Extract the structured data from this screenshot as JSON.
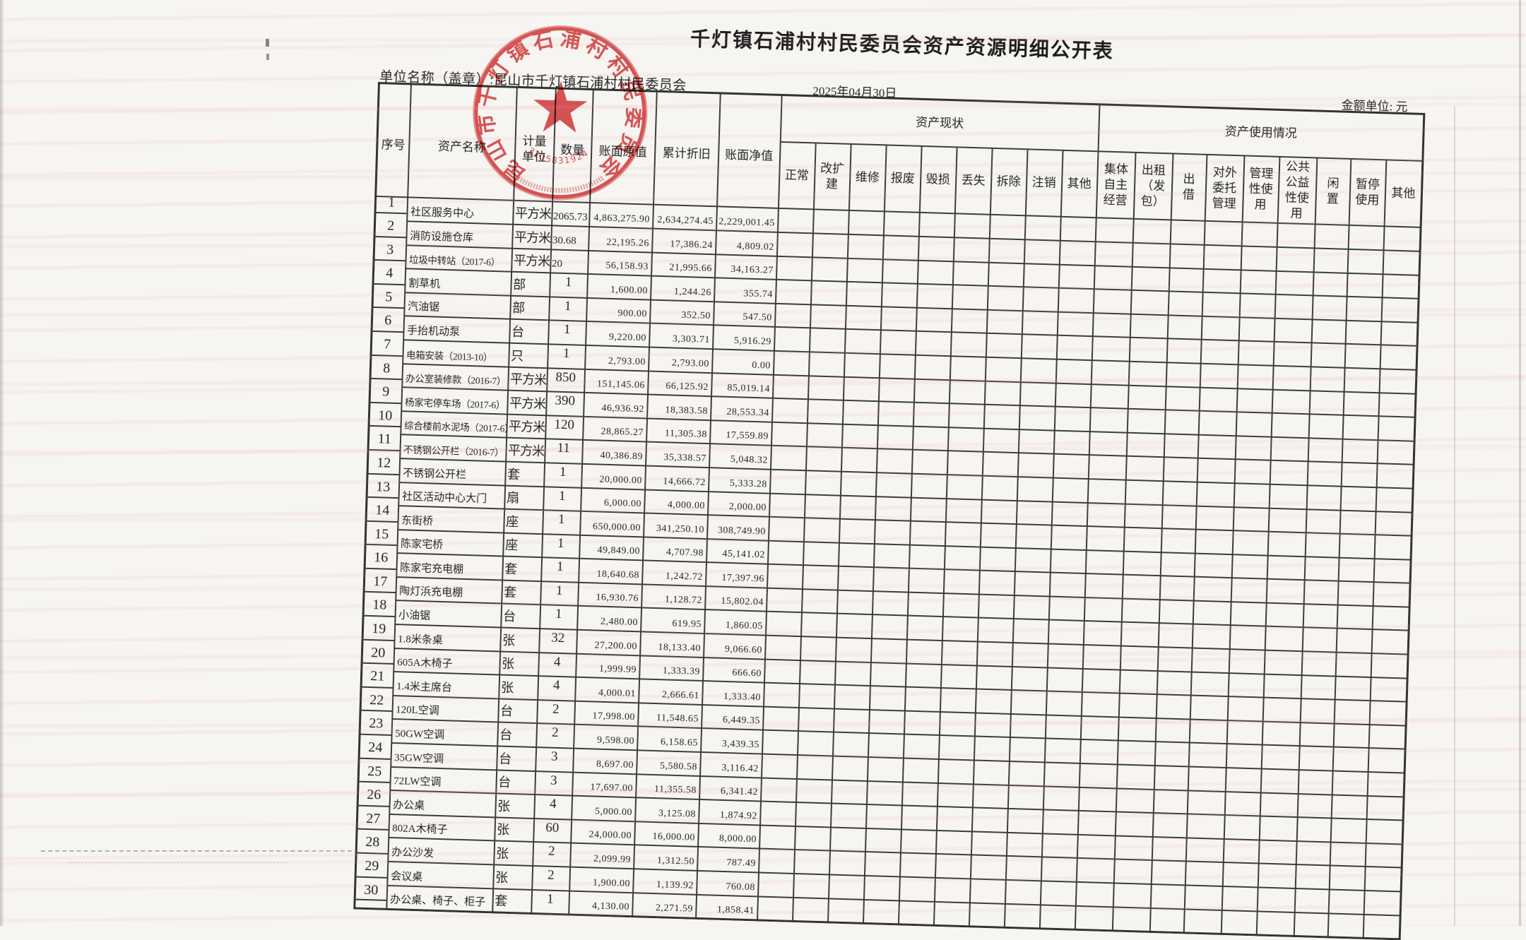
{
  "page": {
    "title": "千灯镇石浦村村民委员会资产资源明细公开表",
    "unit_label": "单位名称（盖章）:昆山市千灯镇石浦村村民委员会",
    "report_date": "2025年04月30日",
    "amount_unit": "金额单位: 元"
  },
  "stamp": {
    "ring_text": "昆山市千灯镇石浦村村民委员会",
    "code": "3205831924011",
    "color": "#cf3b3b"
  },
  "table": {
    "columns": [
      "序号",
      "资产名称",
      "计量单位",
      "数量",
      "账面原值",
      "累计折旧",
      "账面净值"
    ],
    "status_group": {
      "label": "资产现状",
      "columns": [
        "正常",
        "改扩建",
        "维修",
        "报废",
        "毁损",
        "丢失",
        "拆除",
        "注销",
        "其他"
      ]
    },
    "usage_group": {
      "label": "资产使用情况",
      "columns": [
        "集体自主经营",
        "出租（发包）",
        "出借",
        "对外委托管理",
        "管理性使用",
        "公共公益性使用",
        "闲置",
        "暂停使用",
        "其他"
      ]
    },
    "rows": [
      {
        "no": "1",
        "name": "社区服务中心",
        "unit": "平方米",
        "qty": "2065.73",
        "original": "4,863,275.90",
        "depreciation": "2,634,274.45",
        "net": "2,229,001.45"
      },
      {
        "no": "2",
        "name": "消防设施仓库",
        "unit": "平方米",
        "qty": "30.68",
        "original": "22,195.26",
        "depreciation": "17,386.24",
        "net": "4,809.02"
      },
      {
        "no": "3",
        "name": "垃圾中转站（2017-6）",
        "unit": "平方米",
        "qty": "20",
        "original": "56,158.93",
        "depreciation": "21,995.66",
        "net": "34,163.27"
      },
      {
        "no": "4",
        "name": "割草机",
        "unit": "部",
        "qty": "1",
        "original": "1,600.00",
        "depreciation": "1,244.26",
        "net": "355.74"
      },
      {
        "no": "5",
        "name": "汽油锯",
        "unit": "部",
        "qty": "1",
        "original": "900.00",
        "depreciation": "352.50",
        "net": "547.50"
      },
      {
        "no": "6",
        "name": "手抬机动泵",
        "unit": "台",
        "qty": "1",
        "original": "9,220.00",
        "depreciation": "3,303.71",
        "net": "5,916.29"
      },
      {
        "no": "7",
        "name": "电箱安装（2013-10）",
        "unit": "只",
        "qty": "1",
        "original": "2,793.00",
        "depreciation": "2,793.00",
        "net": "0.00"
      },
      {
        "no": "8",
        "name": "办公室装修款（2016-7）",
        "unit": "平方米",
        "qty": "850",
        "original": "151,145.06",
        "depreciation": "66,125.92",
        "net": "85,019.14"
      },
      {
        "no": "9",
        "name": "杨家宅停车场（2017-6）",
        "unit": "平方米",
        "qty": "390",
        "original": "46,936.92",
        "depreciation": "18,383.58",
        "net": "28,553.34"
      },
      {
        "no": "10",
        "name": "综合楼前水泥场（2017-6）",
        "unit": "平方米",
        "qty": "120",
        "original": "28,865.27",
        "depreciation": "11,305.38",
        "net": "17,559.89"
      },
      {
        "no": "11",
        "name": "不锈钢公开栏（2016-7）",
        "unit": "平方米",
        "qty": "11",
        "original": "40,386.89",
        "depreciation": "35,338.57",
        "net": "5,048.32"
      },
      {
        "no": "12",
        "name": "不锈钢公开栏",
        "unit": "套",
        "qty": "1",
        "original": "20,000.00",
        "depreciation": "14,666.72",
        "net": "5,333.28"
      },
      {
        "no": "13",
        "name": "社区活动中心大门",
        "unit": "扇",
        "qty": "1",
        "original": "6,000.00",
        "depreciation": "4,000.00",
        "net": "2,000.00"
      },
      {
        "no": "14",
        "name": "东街桥",
        "unit": "座",
        "qty": "1",
        "original": "650,000.00",
        "depreciation": "341,250.10",
        "net": "308,749.90"
      },
      {
        "no": "15",
        "name": "陈家宅桥",
        "unit": "座",
        "qty": "1",
        "original": "49,849.00",
        "depreciation": "4,707.98",
        "net": "45,141.02"
      },
      {
        "no": "16",
        "name": "陈家宅充电棚",
        "unit": "套",
        "qty": "1",
        "original": "18,640.68",
        "depreciation": "1,242.72",
        "net": "17,397.96"
      },
      {
        "no": "17",
        "name": "陶灯浜充电棚",
        "unit": "套",
        "qty": "1",
        "original": "16,930.76",
        "depreciation": "1,128.72",
        "net": "15,802.04"
      },
      {
        "no": "18",
        "name": "小油锯",
        "unit": "台",
        "qty": "1",
        "original": "2,480.00",
        "depreciation": "619.95",
        "net": "1,860.05"
      },
      {
        "no": "19",
        "name": "1.8米条桌",
        "unit": "张",
        "qty": "32",
        "original": "27,200.00",
        "depreciation": "18,133.40",
        "net": "9,066.60"
      },
      {
        "no": "20",
        "name": "605A木椅子",
        "unit": "张",
        "qty": "4",
        "original": "1,999.99",
        "depreciation": "1,333.39",
        "net": "666.60"
      },
      {
        "no": "21",
        "name": "1.4米主席台",
        "unit": "张",
        "qty": "4",
        "original": "4,000.01",
        "depreciation": "2,666.61",
        "net": "1,333.40"
      },
      {
        "no": "22",
        "name": "120L空调",
        "unit": "台",
        "qty": "2",
        "original": "17,998.00",
        "depreciation": "11,548.65",
        "net": "6,449.35"
      },
      {
        "no": "23",
        "name": "50GW空调",
        "unit": "台",
        "qty": "2",
        "original": "9,598.00",
        "depreciation": "6,158.65",
        "net": "3,439.35"
      },
      {
        "no": "24",
        "name": "35GW空调",
        "unit": "台",
        "qty": "3",
        "original": "8,697.00",
        "depreciation": "5,580.58",
        "net": "3,116.42"
      },
      {
        "no": "25",
        "name": "72LW空调",
        "unit": "台",
        "qty": "3",
        "original": "17,697.00",
        "depreciation": "11,355.58",
        "net": "6,341.42"
      },
      {
        "no": "26",
        "name": "办公桌",
        "unit": "张",
        "qty": "4",
        "original": "5,000.00",
        "depreciation": "3,125.08",
        "net": "1,874.92"
      },
      {
        "no": "27",
        "name": "802A木椅子",
        "unit": "张",
        "qty": "60",
        "original": "24,000.00",
        "depreciation": "16,000.00",
        "net": "8,000.00"
      },
      {
        "no": "28",
        "name": "办公沙发",
        "unit": "张",
        "qty": "2",
        "original": "2,099.99",
        "depreciation": "1,312.50",
        "net": "787.49"
      },
      {
        "no": "29",
        "name": "会议桌",
        "unit": "张",
        "qty": "2",
        "original": "1,900.00",
        "depreciation": "1,139.92",
        "net": "760.08"
      },
      {
        "no": "30",
        "name": "办公桌、椅子、柜子",
        "unit": "套",
        "qty": "1",
        "original": "4,130.00",
        "depreciation": "2,271.59",
        "net": "1,858.41"
      }
    ]
  }
}
